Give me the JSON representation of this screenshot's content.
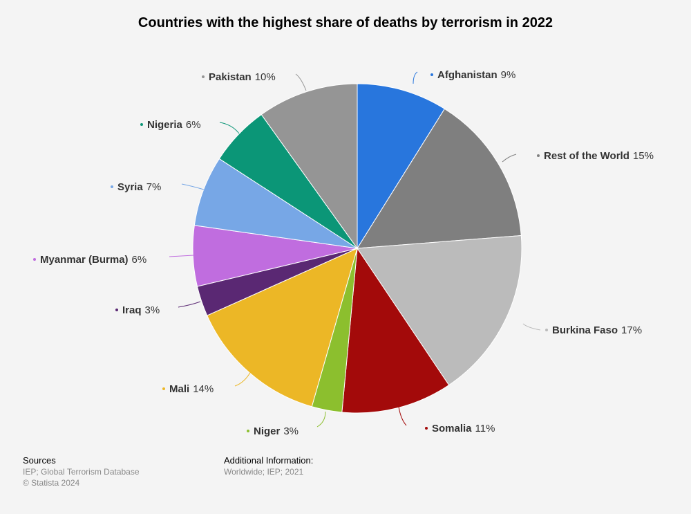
{
  "chart_data": {
    "type": "pie",
    "title": "Countries with the highest share of deaths by terrorism in 2022",
    "slices": [
      {
        "label": "Afghanistan",
        "value": 9,
        "value_label": "9%",
        "color": "#2876dd"
      },
      {
        "label": "Rest of the World",
        "value": 15,
        "value_label": "15%",
        "color": "#7f7f7f"
      },
      {
        "label": "Burkina Faso",
        "value": 17,
        "value_label": "17%",
        "color": "#bbbbbb"
      },
      {
        "label": "Somalia",
        "value": 11,
        "value_label": "11%",
        "color": "#a30a0a"
      },
      {
        "label": "Niger",
        "value": 3,
        "value_label": "3%",
        "color": "#8cbf2e"
      },
      {
        "label": "Mali",
        "value": 14,
        "value_label": "14%",
        "color": "#ecb726"
      },
      {
        "label": "Iraq",
        "value": 3,
        "value_label": "3%",
        "color": "#5a2873"
      },
      {
        "label": "Myanmar (Burma)",
        "value": 6,
        "value_label": "6%",
        "color": "#c06ddf"
      },
      {
        "label": "Syria",
        "value": 7,
        "value_label": "7%",
        "color": "#77a7e6"
      },
      {
        "label": "Nigeria",
        "value": 6,
        "value_label": "6%",
        "color": "#0b9677"
      },
      {
        "label": "Pakistan",
        "value": 10,
        "value_label": "10%",
        "color": "#959595"
      }
    ]
  },
  "footer": {
    "sources_heading": "Sources",
    "sources_line1": "IEP; Global Terrorism Database",
    "sources_line2": "© Statista 2024",
    "additional_heading": "Additional Information:",
    "additional_line1": "Worldwide; IEP; 2021"
  }
}
